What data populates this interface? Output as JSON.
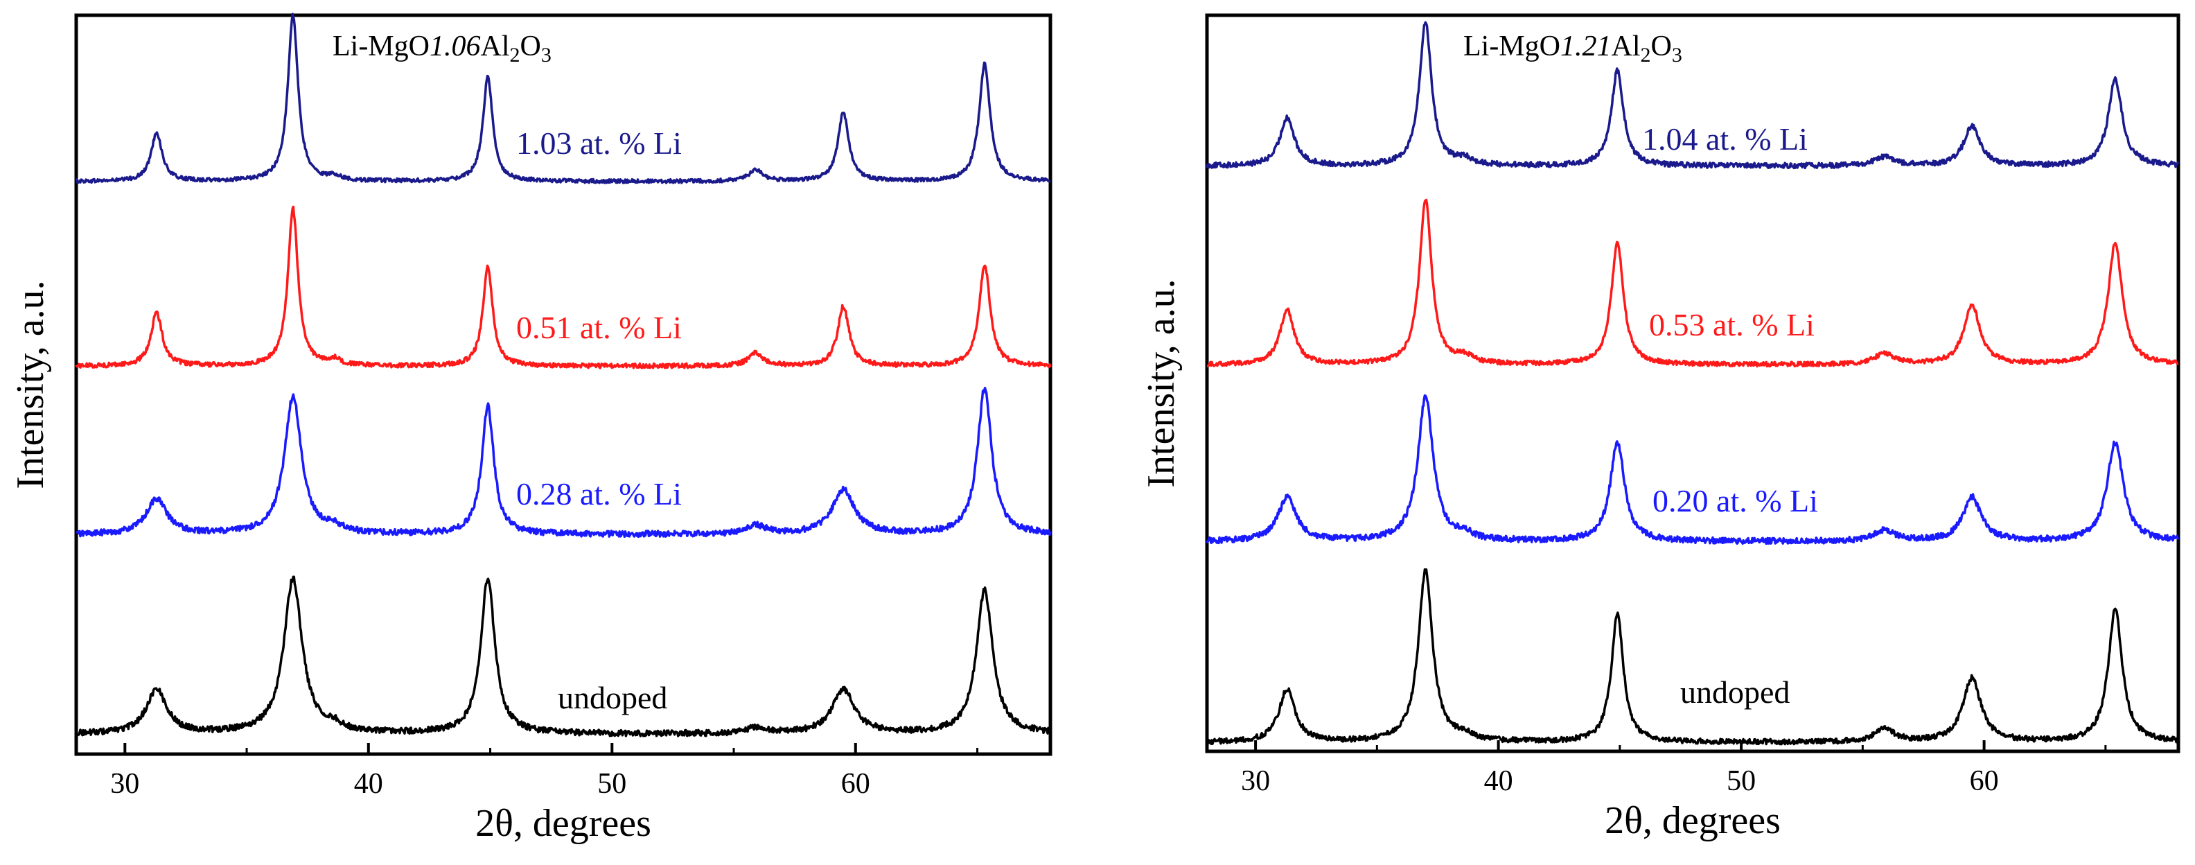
{
  "chart_data": [
    {
      "type": "line",
      "title_parts": [
        "Li-MgO",
        "1.06",
        "Al",
        "2",
        "O",
        "3"
      ],
      "xlabel": "2θ, degrees",
      "ylabel": "Intensity, a.u.",
      "xlim": [
        28,
        68
      ],
      "xticks": [
        "30",
        "40",
        "50",
        "60"
      ],
      "grid": false,
      "series": [
        {
          "name": "1.03 at. % Li",
          "color": "#1a1a8c",
          "baseline": 0.775,
          "noise": 0.0025,
          "peaks": [
            [
              31.3,
              0.066,
              0.27
            ],
            [
              36.9,
              0.225,
              0.25
            ],
            [
              38.6,
              0.006,
              0.3
            ],
            [
              44.9,
              0.141,
              0.24
            ],
            [
              55.9,
              0.015,
              0.35
            ],
            [
              59.5,
              0.093,
              0.27
            ],
            [
              65.3,
              0.159,
              0.27
            ]
          ]
        },
        {
          "name": "0.51 at. % Li",
          "color": "#ff1a1a",
          "baseline": 0.525,
          "noise": 0.003,
          "peaks": [
            [
              31.3,
              0.072,
              0.28
            ],
            [
              36.9,
              0.213,
              0.25
            ],
            [
              38.6,
              0.008,
              0.3
            ],
            [
              44.9,
              0.135,
              0.24
            ],
            [
              55.9,
              0.018,
              0.35
            ],
            [
              59.5,
              0.081,
              0.28
            ],
            [
              65.3,
              0.138,
              0.27
            ]
          ]
        },
        {
          "name": "0.28 at. % Li",
          "color": "#1a1aff",
          "baseline": 0.297,
          "noise": 0.004,
          "peaks": [
            [
              31.3,
              0.048,
              0.5
            ],
            [
              36.9,
              0.186,
              0.42
            ],
            [
              38.6,
              0.008,
              0.4
            ],
            [
              44.9,
              0.174,
              0.3
            ],
            [
              55.9,
              0.012,
              0.5
            ],
            [
              59.5,
              0.06,
              0.55
            ],
            [
              65.3,
              0.198,
              0.35
            ]
          ]
        },
        {
          "name": "undoped",
          "color": "#000000",
          "baseline": 0.027,
          "noise": 0.004,
          "peaks": [
            [
              31.3,
              0.06,
              0.5
            ],
            [
              36.9,
              0.21,
              0.45
            ],
            [
              38.6,
              0.008,
              0.4
            ],
            [
              44.9,
              0.21,
              0.35
            ],
            [
              55.9,
              0.008,
              0.5
            ],
            [
              59.5,
              0.06,
              0.55
            ],
            [
              65.3,
              0.195,
              0.4
            ]
          ]
        }
      ]
    },
    {
      "type": "line",
      "title_parts": [
        "Li-MgO",
        "1.21",
        "Al",
        "2",
        "O",
        "3"
      ],
      "xlabel": "2θ, degrees",
      "ylabel": "Intensity, a.u.",
      "xlim": [
        28,
        68
      ],
      "xticks": [
        "30",
        "40",
        "50",
        "60"
      ],
      "grid": false,
      "series": [
        {
          "name": "1.04 at. % Li",
          "color": "#1a1a8c",
          "baseline": 0.795,
          "noise": 0.0035,
          "peaks": [
            [
              31.3,
              0.066,
              0.35
            ],
            [
              37.0,
              0.195,
              0.3
            ],
            [
              38.6,
              0.008,
              0.4
            ],
            [
              44.9,
              0.129,
              0.3
            ],
            [
              55.9,
              0.012,
              0.5
            ],
            [
              59.5,
              0.054,
              0.4
            ],
            [
              65.4,
              0.117,
              0.35
            ]
          ]
        },
        {
          "name": "0.53 at. % Li",
          "color": "#ff1a1a",
          "baseline": 0.525,
          "noise": 0.003,
          "peaks": [
            [
              31.3,
              0.075,
              0.35
            ],
            [
              37.0,
              0.225,
              0.3
            ],
            [
              38.6,
              0.01,
              0.4
            ],
            [
              44.9,
              0.165,
              0.3
            ],
            [
              55.9,
              0.015,
              0.5
            ],
            [
              59.5,
              0.081,
              0.4
            ],
            [
              65.4,
              0.165,
              0.35
            ]
          ]
        },
        {
          "name": "0.20 at. % Li",
          "color": "#1a1aff",
          "baseline": 0.285,
          "noise": 0.004,
          "peaks": [
            [
              31.3,
              0.06,
              0.45
            ],
            [
              37.0,
              0.195,
              0.38
            ],
            [
              38.6,
              0.008,
              0.4
            ],
            [
              44.9,
              0.135,
              0.35
            ],
            [
              55.9,
              0.015,
              0.5
            ],
            [
              59.5,
              0.06,
              0.45
            ],
            [
              65.4,
              0.135,
              0.4
            ]
          ]
        },
        {
          "name": "undoped",
          "color": "#000000",
          "baseline": 0.012,
          "noise": 0.0035,
          "peaks": [
            [
              31.3,
              0.072,
              0.4
            ],
            [
              37.0,
              0.234,
              0.35
            ],
            [
              38.6,
              0.008,
              0.4
            ],
            [
              44.9,
              0.174,
              0.3
            ],
            [
              55.9,
              0.018,
              0.5
            ],
            [
              59.5,
              0.087,
              0.45
            ],
            [
              65.4,
              0.18,
              0.35
            ]
          ]
        }
      ]
    }
  ]
}
